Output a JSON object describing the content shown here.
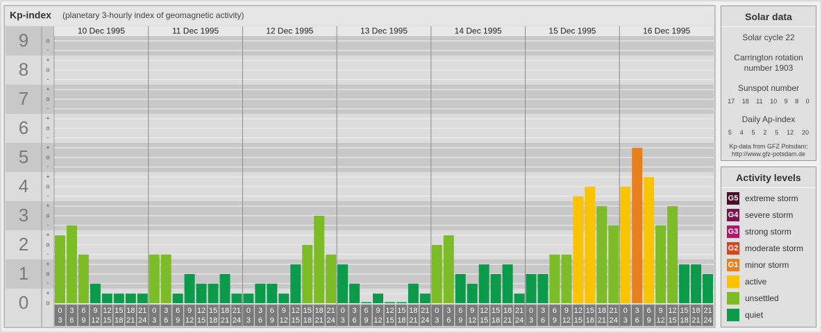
{
  "chart_data": {
    "type": "bar",
    "title": "Kp-index",
    "subtitle": "(planetary 3-hourly index of geomagnetic activity)",
    "ylim": [
      0,
      9.5
    ],
    "yticks": [
      0,
      1,
      2,
      3,
      4,
      5,
      6,
      7,
      8,
      9
    ],
    "minor_yticks": [
      {
        "value": 0,
        "label": "o"
      },
      {
        "value": 0.33,
        "label": "+"
      },
      {
        "value": 0.67,
        "label": "-"
      },
      {
        "value": 1,
        "label": "o"
      },
      {
        "value": 1.33,
        "label": "+"
      },
      {
        "value": 1.67,
        "label": "-"
      },
      {
        "value": 2,
        "label": "o"
      },
      {
        "value": 2.33,
        "label": "+"
      },
      {
        "value": 2.67,
        "label": "-"
      },
      {
        "value": 3,
        "label": "o"
      },
      {
        "value": 3.33,
        "label": "+"
      },
      {
        "value": 3.67,
        "label": "-"
      },
      {
        "value": 4,
        "label": "o"
      },
      {
        "value": 4.33,
        "label": "+"
      },
      {
        "value": 4.67,
        "label": "-"
      },
      {
        "value": 5,
        "label": "o"
      },
      {
        "value": 5.33,
        "label": "+"
      },
      {
        "value": 5.67,
        "label": "-"
      },
      {
        "value": 6,
        "label": "o"
      },
      {
        "value": 6.33,
        "label": "+"
      },
      {
        "value": 6.67,
        "label": "-"
      },
      {
        "value": 7,
        "label": "o"
      },
      {
        "value": 7.33,
        "label": "+"
      },
      {
        "value": 7.67,
        "label": "-"
      },
      {
        "value": 8,
        "label": "o"
      },
      {
        "value": 8.33,
        "label": "+"
      },
      {
        "value": 8.67,
        "label": "-"
      },
      {
        "value": 9,
        "label": "o"
      }
    ],
    "grid": true,
    "hour_bins": [
      0,
      3,
      6,
      9,
      12,
      15,
      18,
      21,
      24
    ],
    "days": [
      {
        "date": "10 Dec 1995",
        "values": [
          2.33,
          2.67,
          1.67,
          0.67,
          0.33,
          0.33,
          0.33,
          0.33
        ],
        "colors": [
          "#7cbd27",
          "#7cbd27",
          "#7cbd27",
          "#0a9a4a",
          "#0a9a4a",
          "#0a9a4a",
          "#0a9a4a",
          "#0a9a4a"
        ]
      },
      {
        "date": "11 Dec 1995",
        "values": [
          1.67,
          1.67,
          0.33,
          1,
          0.67,
          0.67,
          1,
          0.33
        ],
        "colors": [
          "#7cbd27",
          "#7cbd27",
          "#0a9a4a",
          "#0a9a4a",
          "#0a9a4a",
          "#0a9a4a",
          "#0a9a4a",
          "#0a9a4a"
        ]
      },
      {
        "date": "12 Dec 1995",
        "values": [
          0.33,
          0.67,
          0.67,
          0.33,
          1.33,
          2,
          3,
          1.67
        ],
        "colors": [
          "#0a9a4a",
          "#0a9a4a",
          "#0a9a4a",
          "#0a9a4a",
          "#0a9a4a",
          "#7cbd27",
          "#7cbd27",
          "#7cbd27"
        ]
      },
      {
        "date": "13 Dec 1995",
        "values": [
          1.33,
          0.67,
          0,
          0.33,
          0,
          0,
          0.67,
          0.33
        ],
        "colors": [
          "#0a9a4a",
          "#0a9a4a",
          "#0a9a4a",
          "#0a9a4a",
          "#0a9a4a",
          "#0a9a4a",
          "#0a9a4a",
          "#0a9a4a"
        ]
      },
      {
        "date": "14 Dec 1995",
        "values": [
          2,
          2.33,
          1,
          0.67,
          1.33,
          1,
          1.33,
          0.33
        ],
        "colors": [
          "#7cbd27",
          "#7cbd27",
          "#0a9a4a",
          "#0a9a4a",
          "#0a9a4a",
          "#0a9a4a",
          "#0a9a4a",
          "#0a9a4a"
        ]
      },
      {
        "date": "15 Dec 1995",
        "values": [
          1,
          1,
          1.67,
          1.67,
          3.67,
          4,
          3.33,
          2.67
        ],
        "colors": [
          "#0a9a4a",
          "#0a9a4a",
          "#7cbd27",
          "#7cbd27",
          "#f9c300",
          "#f9c300",
          "#7cbd27",
          "#7cbd27"
        ]
      },
      {
        "date": "16 Dec 1995",
        "values": [
          4,
          5.33,
          4.33,
          2.67,
          3.33,
          1.33,
          1.33,
          1
        ],
        "colors": [
          "#f9c300",
          "#e8801e",
          "#f9c300",
          "#7cbd27",
          "#7cbd27",
          "#0a9a4a",
          "#0a9a4a",
          "#0a9a4a"
        ]
      }
    ]
  },
  "solar_data": {
    "title": "Solar data",
    "solar_cycle": "Solar cycle 22",
    "carrington": "Carrington rotation number 1903",
    "sunspot_title": "Sunspot number",
    "sunspot_numbers": [
      17,
      18,
      11,
      10,
      9,
      8,
      0
    ],
    "ap_title": "Daily Ap-index",
    "ap_index": [
      5,
      4,
      5,
      2,
      5,
      12,
      20
    ],
    "source_note": "Kp-data from GFZ Potsdam:",
    "source_url": "http://www.gfz-potsdam.de"
  },
  "activity_levels": {
    "title": "Activity levels",
    "items": [
      {
        "badge": "G5",
        "label": "extreme storm",
        "color": "#4a0b2a"
      },
      {
        "badge": "G4",
        "label": "severe storm",
        "color": "#7a1450"
      },
      {
        "badge": "G3",
        "label": "strong storm",
        "color": "#b0156a"
      },
      {
        "badge": "G2",
        "label": "moderate storm",
        "color": "#d8441c"
      },
      {
        "badge": "G1",
        "label": "minor storm",
        "color": "#e8801e"
      },
      {
        "label": "active",
        "color": "#f9c300"
      },
      {
        "label": "unsettled",
        "color": "#7cbd27"
      },
      {
        "label": "quiet",
        "color": "#0a9a4a"
      }
    ]
  }
}
